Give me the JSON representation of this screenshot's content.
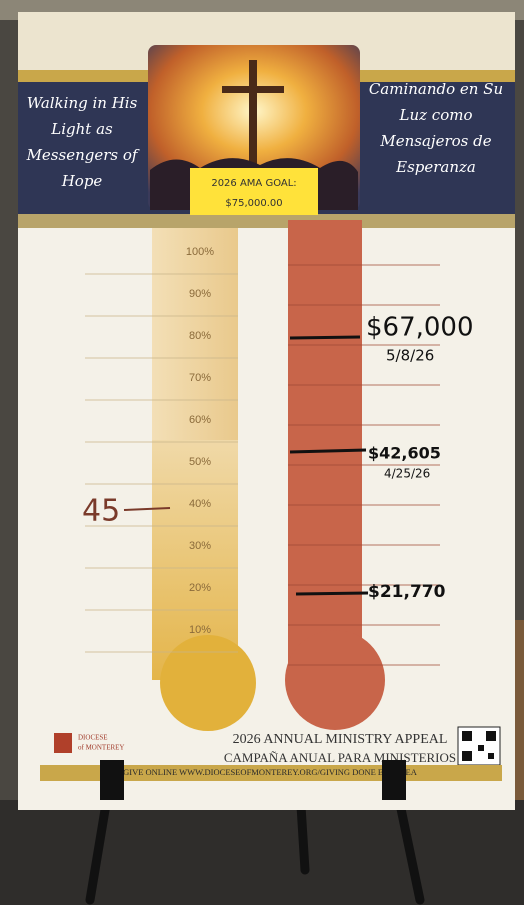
{
  "header": {
    "left_title": [
      "Walking in His",
      "Light as",
      "Messengers of",
      "Hope"
    ],
    "right_title": [
      "Caminando en Su",
      "Luz como",
      "Mensajeros de",
      "Esperanza"
    ],
    "goal_label": "2026 AMA GOAL:",
    "goal_amount": "$75,000.00"
  },
  "thermometer": {
    "percent_labels": [
      "100%",
      "90%",
      "80%",
      "70%",
      "60%",
      "50%",
      "40%",
      "30%",
      "20%",
      "10%"
    ],
    "marker": "45"
  },
  "progress": [
    {
      "amount": "$67,000",
      "date": "5/8/26"
    },
    {
      "amount": "$42,605",
      "date": "4/25/26"
    },
    {
      "amount": "$21,770"
    }
  ],
  "footer": {
    "logo": [
      "DIOCESE",
      "of MONTEREY"
    ],
    "title_en": "2026 ANNUAL MINISTRY APPEAL",
    "title_es": "CAMPAÑA ANUAL PARA MINISTERIOS",
    "give_online": "GIVE ONLINE WWW.DIOCESEOFMONTEREY.ORG/GIVING  DONE EN LÍNEA"
  }
}
